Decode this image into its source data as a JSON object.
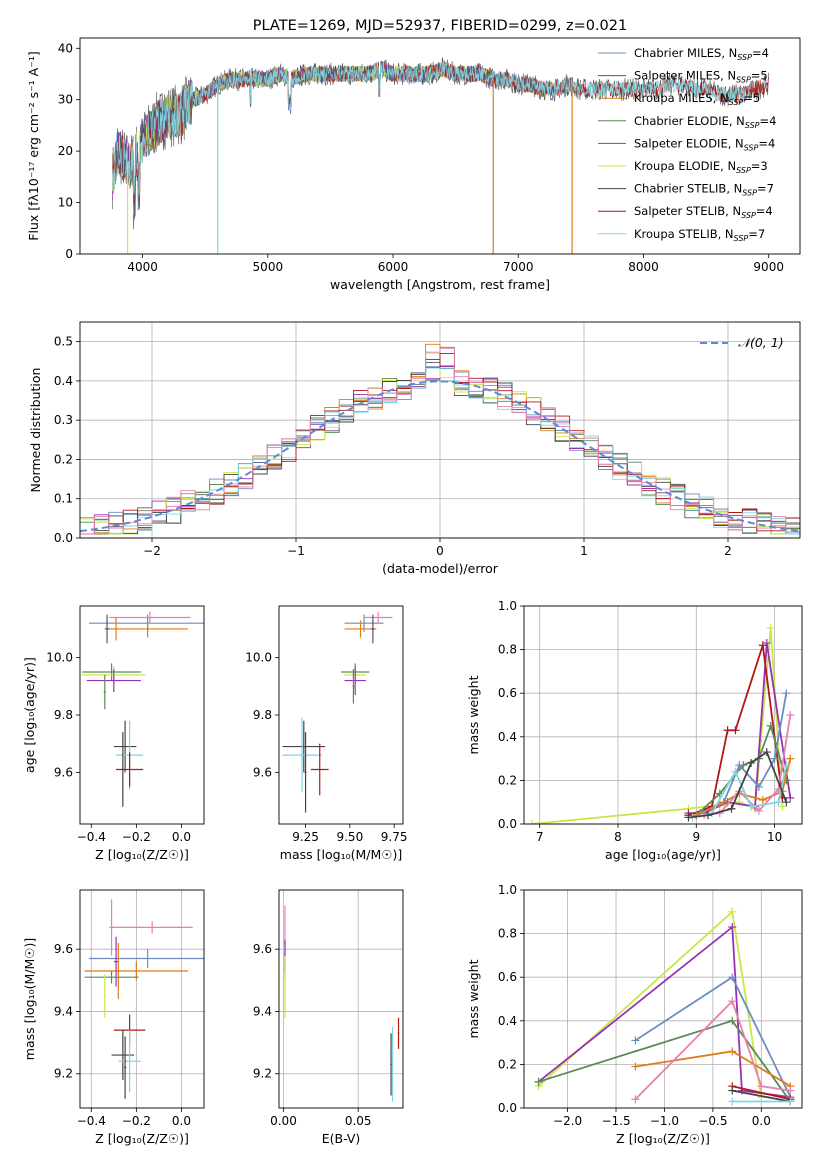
{
  "colors": {
    "Chabrier MILES": "#6c8ebf",
    "Salpeter MILES": "#555577",
    "Kroupa MILES": "#e07b1a",
    "Chabrier ELODIE": "#5a8a5a",
    "Salpeter ELODIE": "#9b30b0",
    "Kroupa ELODIE": "#c8e84a",
    "Chabrier STELIB": "#444444",
    "Salpeter STELIB": "#b01818",
    "Kroupa STELIB": "#7fd6e0",
    "pink": "#e87fb0"
  },
  "chart_data": [
    {
      "id": "spectrum",
      "type": "line",
      "title": "PLATE=1269, MJD=52937, FIBERID=0299, z=0.021",
      "xlabel": "wavelength [Angstrom, rest frame]",
      "ylabel": "Flux [fλ10⁻¹⁷ erg cm⁻² s⁻¹ A⁻¹]",
      "xlim": [
        3500,
        9250
      ],
      "ylim": [
        0,
        42
      ],
      "xticks": [
        4000,
        5000,
        6000,
        7000,
        8000,
        9000
      ],
      "yticks": [
        0,
        10,
        20,
        30,
        40
      ],
      "legend_position": "top-right",
      "legend": [
        {
          "label": "Chabrier MILES, N",
          "sub": "SSP",
          "tail": "=4",
          "color_key": "Chabrier MILES"
        },
        {
          "label": "Salpeter MILES, N",
          "sub": "SSP",
          "tail": "=5",
          "color_key": "Salpeter MILES"
        },
        {
          "label": "Kroupa MILES, N",
          "sub": "SSP",
          "tail": "=5",
          "color_key": "Kroupa MILES"
        },
        {
          "label": "Chabrier ELODIE, N",
          "sub": "SSP",
          "tail": "=4",
          "color_key": "Chabrier ELODIE"
        },
        {
          "label": "Salpeter ELODIE, N",
          "sub": "SSP",
          "tail": "=4",
          "color_key": "Salpeter ELODIE"
        },
        {
          "label": "Kroupa ELODIE, N",
          "sub": "SSP",
          "tail": "=3",
          "color_key": "Kroupa ELODIE"
        },
        {
          "label": "Chabrier STELIB, N",
          "sub": "SSP",
          "tail": "=7",
          "color_key": "Chabrier STELIB"
        },
        {
          "label": "Salpeter STELIB, N",
          "sub": "SSP",
          "tail": "=4",
          "color_key": "Salpeter STELIB"
        },
        {
          "label": "Kroupa STELIB, N",
          "sub": "SSP",
          "tail": "=7",
          "color_key": "Kroupa STELIB"
        }
      ],
      "continuum": [
        [
          3760,
          15
        ],
        [
          3800,
          20
        ],
        [
          3900,
          17
        ],
        [
          4000,
          22
        ],
        [
          4100,
          25
        ],
        [
          4200,
          27
        ],
        [
          4300,
          27
        ],
        [
          4400,
          30
        ],
        [
          4500,
          31
        ],
        [
          4600,
          33
        ],
        [
          4700,
          34
        ],
        [
          4800,
          34
        ],
        [
          4900,
          34
        ],
        [
          5000,
          34
        ],
        [
          5100,
          35
        ],
        [
          5200,
          34
        ],
        [
          5300,
          35
        ],
        [
          5400,
          35
        ],
        [
          5500,
          35
        ],
        [
          5600,
          35
        ],
        [
          5700,
          35
        ],
        [
          5800,
          35
        ],
        [
          5900,
          36
        ],
        [
          6000,
          35
        ],
        [
          6100,
          35
        ],
        [
          6200,
          35
        ],
        [
          6300,
          35
        ],
        [
          6400,
          36
        ],
        [
          6500,
          35
        ],
        [
          6600,
          35
        ],
        [
          6700,
          35
        ],
        [
          6800,
          34
        ],
        [
          6900,
          34
        ],
        [
          7000,
          33
        ],
        [
          7100,
          33
        ],
        [
          7200,
          32
        ],
        [
          7300,
          32
        ],
        [
          7400,
          33
        ],
        [
          7500,
          32
        ],
        [
          7600,
          32
        ],
        [
          7700,
          32
        ],
        [
          7800,
          32
        ],
        [
          7900,
          32
        ],
        [
          8000,
          32
        ],
        [
          8100,
          32
        ],
        [
          8200,
          33
        ],
        [
          8300,
          33
        ],
        [
          8400,
          32
        ],
        [
          8500,
          32
        ],
        [
          8600,
          31
        ],
        [
          8700,
          31
        ],
        [
          8800,
          31
        ],
        [
          8900,
          32
        ],
        [
          9000,
          33
        ]
      ],
      "glitches": [
        {
          "x": 4600,
          "y": 0,
          "color_key": "Kroupa STELIB"
        },
        {
          "x": 6800,
          "y": 0,
          "color_key": "Kroupa MILES"
        },
        {
          "x": 7430,
          "y": 0,
          "color_key": "Kroupa MILES"
        },
        {
          "x": 3880,
          "y": 0,
          "color_key": "Kroupa ELODIE"
        }
      ]
    },
    {
      "id": "residuals",
      "type": "histogram",
      "xlabel": "(data-model)/error",
      "ylabel": "Normed distribution",
      "xlim": [
        -2.5,
        2.5
      ],
      "ylim": [
        0,
        0.55
      ],
      "xticks": [
        -2,
        -1,
        0,
        1,
        2
      ],
      "yticks": [
        0.0,
        0.1,
        0.2,
        0.3,
        0.4,
        0.5
      ],
      "legend_position": "top-right",
      "legend_label": "𝒩(0, 1)",
      "gaussian_color": "#5b8bd8",
      "bin_width": 0.1
    },
    {
      "id": "age-vs-Z",
      "type": "errorbar",
      "xlabel": "Z [log₁₀(Z/Z☉)]",
      "ylabel": "age  [log₁₀(age/yr)]",
      "xlim": [
        -0.45,
        0.1
      ],
      "ylim": [
        9.42,
        10.18
      ],
      "xticks": [
        -0.4,
        -0.2,
        0.0
      ],
      "yticks": [
        9.6,
        9.8,
        10.0
      ],
      "points": [
        {
          "x": -0.15,
          "y": 10.12,
          "xe": 0.26,
          "ye": 0.03,
          "color_key": "Chabrier MILES"
        },
        {
          "x": -0.14,
          "y": 10.14,
          "xe": 0.18,
          "ye": 0.02,
          "color_key": "pink"
        },
        {
          "x": -0.15,
          "y": 10.1,
          "xe": 0.18,
          "ye": 0.03,
          "color_key": "Kroupa MILES"
        },
        {
          "x": -0.33,
          "y": 10.1,
          "xe": 0.01,
          "ye": 0.05,
          "color_key": "Salpeter MILES"
        },
        {
          "x": -0.29,
          "y": 10.1,
          "xe": 0.01,
          "ye": 0.04,
          "color_key": "Kroupa MILES"
        },
        {
          "x": -0.31,
          "y": 9.95,
          "xe": 0.13,
          "ye": 0.03,
          "color_key": "Chabrier ELODIE"
        },
        {
          "x": -0.3,
          "y": 9.94,
          "xe": 0.14,
          "ye": 0.03,
          "color_key": "Kroupa ELODIE"
        },
        {
          "x": -0.3,
          "y": 9.92,
          "xe": 0.12,
          "ye": 0.04,
          "color_key": "Salpeter ELODIE"
        },
        {
          "x": -0.34,
          "y": 9.88,
          "xe": 0.005,
          "ye": 0.06,
          "color_key": "Chabrier ELODIE"
        },
        {
          "x": -0.25,
          "y": 9.69,
          "xe": 0.05,
          "ye": 0.09,
          "color_key": "Chabrier STELIB"
        },
        {
          "x": -0.23,
          "y": 9.66,
          "xe": 0.06,
          "ye": 0.12,
          "color_key": "Kroupa STELIB"
        },
        {
          "x": -0.23,
          "y": 9.61,
          "xe": 0.06,
          "ye": 0.06,
          "color_key": "Salpeter STELIB"
        },
        {
          "x": -0.26,
          "y": 9.61,
          "xe": 0.005,
          "ye": 0.13,
          "color_key": "Chabrier STELIB"
        }
      ]
    },
    {
      "id": "age-vs-mass",
      "type": "errorbar",
      "xlabel": "mass [log₁₀(M/M☉)]",
      "ylabel": "",
      "xlim": [
        9.1,
        9.8
      ],
      "ylim": [
        9.42,
        10.18
      ],
      "xticks": [
        9.25,
        9.5,
        9.75
      ],
      "yticks": [
        9.6,
        9.8,
        10.0
      ],
      "points": [
        {
          "x": 9.58,
          "y": 10.12,
          "xe": 0.11,
          "ye": 0.03,
          "color_key": "Chabrier MILES"
        },
        {
          "x": 9.66,
          "y": 10.14,
          "xe": 0.08,
          "ye": 0.02,
          "color_key": "pink"
        },
        {
          "x": 9.56,
          "y": 10.1,
          "xe": 0.09,
          "ye": 0.03,
          "color_key": "Kroupa MILES"
        },
        {
          "x": 9.63,
          "y": 10.1,
          "xe": 0.01,
          "ye": 0.05,
          "color_key": "Salpeter MILES"
        },
        {
          "x": 9.53,
          "y": 9.95,
          "xe": 0.08,
          "ye": 0.03,
          "color_key": "Chabrier ELODIE"
        },
        {
          "x": 9.53,
          "y": 9.94,
          "xe": 0.06,
          "ye": 0.03,
          "color_key": "Kroupa ELODIE"
        },
        {
          "x": 9.53,
          "y": 9.92,
          "xe": 0.06,
          "ye": 0.05,
          "color_key": "Salpeter ELODIE"
        },
        {
          "x": 9.52,
          "y": 9.9,
          "xe": 0.005,
          "ye": 0.06,
          "color_key": "Chabrier ELODIE"
        },
        {
          "x": 9.24,
          "y": 9.69,
          "xe": 0.12,
          "ye": 0.09,
          "color_key": "Chabrier STELIB"
        },
        {
          "x": 9.23,
          "y": 9.66,
          "xe": 0.11,
          "ye": 0.13,
          "color_key": "Kroupa STELIB"
        },
        {
          "x": 9.33,
          "y": 9.61,
          "xe": 0.05,
          "ye": 0.09,
          "color_key": "Salpeter STELIB"
        },
        {
          "x": 9.25,
          "y": 9.6,
          "xe": 0.005,
          "ye": 0.14,
          "color_key": "Chabrier STELIB"
        }
      ]
    },
    {
      "id": "mass-weight-vs-age",
      "type": "line",
      "xlabel": "age  [log₁₀(age/yr)]",
      "ylabel": "mass weight",
      "xlim": [
        6.8,
        10.35
      ],
      "ylim": [
        0,
        1.0
      ],
      "xticks": [
        7,
        8,
        9,
        10
      ],
      "yticks": [
        0.0,
        0.2,
        0.4,
        0.6,
        0.8,
        1.0
      ],
      "series": [
        {
          "color_key": "Kroupa ELODIE",
          "x": [
            6.9,
            8.9,
            9.55,
            9.75,
            9.95,
            10.1
          ],
          "y": [
            0.0,
            0.07,
            0.1,
            0.07,
            0.9,
            0.08
          ]
        },
        {
          "color_key": "Salpeter ELODIE",
          "x": [
            8.9,
            9.1,
            9.4,
            9.75,
            9.9,
            10.2
          ],
          "y": [
            0.05,
            0.05,
            0.1,
            0.08,
            0.83,
            0.12
          ]
        },
        {
          "color_key": "Salpeter STELIB",
          "x": [
            8.9,
            9.2,
            9.4,
            9.5,
            9.85,
            10.1
          ],
          "y": [
            0.04,
            0.08,
            0.43,
            0.43,
            0.82,
            0.12
          ]
        },
        {
          "color_key": "Chabrier ELODIE",
          "x": [
            9.0,
            9.3,
            9.6,
            9.8,
            9.95,
            10.15
          ],
          "y": [
            0.04,
            0.14,
            0.27,
            0.3,
            0.45,
            0.2
          ]
        },
        {
          "color_key": "Chabrier MILES",
          "x": [
            9.05,
            9.35,
            9.55,
            9.8,
            10.0,
            10.15
          ],
          "y": [
            0.05,
            0.1,
            0.27,
            0.17,
            0.3,
            0.6
          ]
        },
        {
          "color_key": "Kroupa MILES",
          "x": [
            9.0,
            9.3,
            9.55,
            9.85,
            10.1,
            10.2
          ],
          "y": [
            0.04,
            0.09,
            0.14,
            0.11,
            0.15,
            0.3
          ]
        },
        {
          "color_key": "pink",
          "x": [
            9.1,
            9.3,
            9.55,
            9.8,
            10.05,
            10.2
          ],
          "y": [
            0.04,
            0.05,
            0.15,
            0.06,
            0.16,
            0.5
          ]
        },
        {
          "color_key": "Kroupa STELIB",
          "x": [
            8.95,
            9.2,
            9.5,
            9.7,
            10.05,
            10.15
          ],
          "y": [
            0.03,
            0.05,
            0.24,
            0.08,
            0.1,
            0.27
          ]
        },
        {
          "color_key": "Chabrier STELIB",
          "x": [
            8.9,
            9.15,
            9.45,
            9.7,
            9.9,
            10.15
          ],
          "y": [
            0.03,
            0.04,
            0.07,
            0.28,
            0.33,
            0.1
          ]
        }
      ]
    },
    {
      "id": "mass-vs-Z",
      "type": "errorbar",
      "xlabel": "Z [log₁₀(Z/Z☉)]",
      "ylabel": "mass [log₁₀(M/M☉)]",
      "xlim": [
        -0.45,
        0.1
      ],
      "ylim": [
        9.09,
        9.79
      ],
      "xticks": [
        -0.4,
        -0.2,
        0.0
      ],
      "yticks": [
        9.2,
        9.4,
        9.6
      ],
      "points": [
        {
          "x": -0.15,
          "y": 9.57,
          "xe": 0.26,
          "ye": 0.03,
          "color_key": "Chabrier MILES"
        },
        {
          "x": -0.13,
          "y": 9.67,
          "xe": 0.18,
          "ye": 0.02,
          "color_key": "pink"
        },
        {
          "x": -0.2,
          "y": 9.53,
          "xe": 0.23,
          "ye": 0.03,
          "color_key": "Kroupa MILES"
        },
        {
          "x": -0.29,
          "y": 9.56,
          "xe": 0.01,
          "ye": 0.08,
          "color_key": "Salpeter ELODIE"
        },
        {
          "x": -0.28,
          "y": 9.53,
          "xe": 0.01,
          "ye": 0.09,
          "color_key": "Kroupa MILES"
        },
        {
          "x": -0.31,
          "y": 9.51,
          "xe": 0.12,
          "ye": 0.02,
          "color_key": "Chabrier ELODIE"
        },
        {
          "x": -0.31,
          "y": 9.67,
          "xe": 0.01,
          "ye": 0.09,
          "color_key": "pink"
        },
        {
          "x": -0.34,
          "y": 9.45,
          "xe": 0.005,
          "ye": 0.07,
          "color_key": "Kroupa ELODIE"
        },
        {
          "x": -0.23,
          "y": 9.34,
          "xe": 0.07,
          "ye": 0.05,
          "color_key": "Salpeter STELIB"
        },
        {
          "x": -0.26,
          "y": 9.26,
          "xe": 0.05,
          "ye": 0.08,
          "color_key": "Chabrier STELIB"
        },
        {
          "x": -0.23,
          "y": 9.24,
          "xe": 0.05,
          "ye": 0.1,
          "color_key": "Kroupa STELIB"
        },
        {
          "x": -0.25,
          "y": 9.22,
          "xe": 0.005,
          "ye": 0.1,
          "color_key": "Chabrier STELIB"
        }
      ]
    },
    {
      "id": "mass-vs-EBV",
      "type": "errorbar",
      "xlabel": "E(B-V)",
      "ylabel": "",
      "xlim": [
        -0.003,
        0.08
      ],
      "ylim": [
        9.09,
        9.79
      ],
      "xticks": [
        0.0,
        0.05
      ],
      "yticks": [
        9.2,
        9.4,
        9.6
      ],
      "points": [
        {
          "x": 0.001,
          "y": 9.62,
          "xe": 0.0005,
          "ye": 0.12,
          "color_key": "pink"
        },
        {
          "x": 0.001,
          "y": 9.58,
          "xe": 0.0005,
          "ye": 0.05,
          "color_key": "Salpeter ELODIE"
        },
        {
          "x": 0.001,
          "y": 9.48,
          "xe": 0.0005,
          "ye": 0.1,
          "color_key": "Kroupa ELODIE"
        },
        {
          "x": 0.073,
          "y": 9.23,
          "xe": 0.0005,
          "ye": 0.12,
          "color_key": "Kroupa STELIB"
        },
        {
          "x": 0.072,
          "y": 9.23,
          "xe": 0.0005,
          "ye": 0.1,
          "color_key": "Chabrier STELIB"
        },
        {
          "x": 0.077,
          "y": 9.33,
          "xe": 0.0005,
          "ye": 0.05,
          "color_key": "Salpeter STELIB"
        }
      ]
    },
    {
      "id": "mass-weight-vs-Z",
      "type": "line",
      "xlabel": "Z [log₁₀(Z/Z☉)]",
      "ylabel": "mass weight",
      "xlim": [
        -2.45,
        0.42
      ],
      "ylim": [
        0,
        1.0
      ],
      "xticks": [
        -2.0,
        -1.5,
        -1.0,
        -0.5,
        0.0
      ],
      "yticks": [
        0.0,
        0.2,
        0.4,
        0.6,
        0.8,
        1.0
      ],
      "series": [
        {
          "color_key": "Kroupa ELODIE",
          "x": [
            -2.3,
            -0.3,
            0.0
          ],
          "y": [
            0.1,
            0.9,
            0.05
          ]
        },
        {
          "color_key": "Salpeter ELODIE",
          "x": [
            -2.3,
            -0.3,
            -0.2,
            0.3
          ],
          "y": [
            0.12,
            0.83,
            0.08,
            0.05
          ]
        },
        {
          "color_key": "Chabrier ELODIE",
          "x": [
            -2.3,
            -0.3,
            0.3
          ],
          "y": [
            0.12,
            0.4,
            0.03
          ]
        },
        {
          "color_key": "Chabrier MILES",
          "x": [
            -1.3,
            -0.3,
            0.3
          ],
          "y": [
            0.31,
            0.6,
            0.05
          ]
        },
        {
          "color_key": "Kroupa MILES",
          "x": [
            -1.3,
            -0.3,
            0.3
          ],
          "y": [
            0.19,
            0.26,
            0.1
          ]
        },
        {
          "color_key": "pink",
          "x": [
            -1.3,
            -0.3,
            0.0,
            0.3
          ],
          "y": [
            0.04,
            0.49,
            0.1,
            0.08
          ]
        },
        {
          "color_key": "Salpeter STELIB",
          "x": [
            -0.3,
            0.3
          ],
          "y": [
            0.1,
            0.04
          ]
        },
        {
          "color_key": "Chabrier STELIB",
          "x": [
            -0.3,
            0.3
          ],
          "y": [
            0.08,
            0.03
          ]
        },
        {
          "color_key": "Kroupa STELIB",
          "x": [
            -0.3,
            0.3
          ],
          "y": [
            0.03,
            0.03
          ]
        }
      ]
    }
  ]
}
